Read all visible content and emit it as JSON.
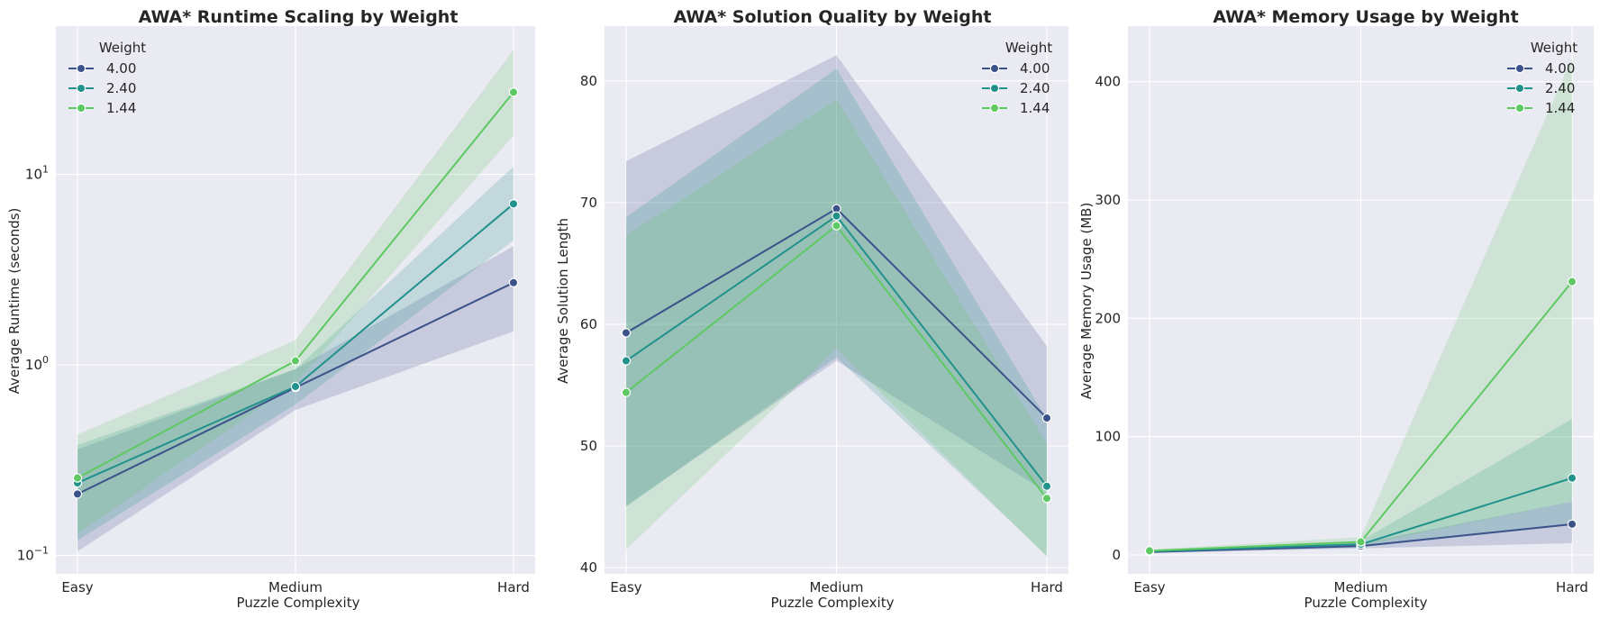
{
  "colors": {
    "background": "#ffffff",
    "axes_face": "#eaeaf2",
    "grid": "#ffffff",
    "text": "#262626"
  },
  "chart_data": [
    {
      "type": "line",
      "title": "AWA* Runtime Scaling by Weight",
      "xlabel": "Puzzle Complexity",
      "ylabel": "Average Runtime (seconds)",
      "yscale": "log",
      "categories": [
        "Easy",
        "Medium",
        "Hard"
      ],
      "ylim": [
        0.08,
        60
      ],
      "yticks": [
        {
          "value": 0.1,
          "base": "10",
          "exp": "−1"
        },
        {
          "value": 1,
          "base": "10",
          "exp": "0"
        },
        {
          "value": 10,
          "base": "10",
          "exp": "1"
        }
      ],
      "grid": true,
      "legend": {
        "title": "Weight",
        "position": "top-left"
      },
      "series": [
        {
          "name": "4.00",
          "color": "#3b528b",
          "values": [
            0.21,
            0.76,
            2.7
          ],
          "ci_low": [
            0.105,
            0.58,
            1.5
          ],
          "ci_high": [
            0.36,
            0.95,
            4.2
          ]
        },
        {
          "name": "2.40",
          "color": "#21918c",
          "values": [
            0.24,
            0.77,
            7.0
          ],
          "ci_low": [
            0.12,
            0.62,
            4.5
          ],
          "ci_high": [
            0.38,
            0.95,
            11
          ]
        },
        {
          "name": "1.44",
          "color": "#5ec962",
          "values": [
            0.255,
            1.05,
            27
          ],
          "ci_low": [
            0.13,
            0.8,
            16
          ],
          "ci_high": [
            0.43,
            1.35,
            45
          ]
        }
      ]
    },
    {
      "type": "line",
      "title": "AWA* Solution Quality by Weight",
      "xlabel": "Puzzle Complexity",
      "ylabel": "Average Solution Length",
      "yscale": "linear",
      "categories": [
        "Easy",
        "Medium",
        "Hard"
      ],
      "ylim": [
        39.5,
        84.5
      ],
      "yticks": [
        40,
        50,
        60,
        70,
        80
      ],
      "grid": true,
      "legend": {
        "title": "Weight",
        "position": "top-right"
      },
      "series": [
        {
          "name": "4.00",
          "color": "#3b528b",
          "values": [
            59.3,
            69.5,
            52.3
          ],
          "ci_low": [
            45.1,
            57.0,
            46.2
          ],
          "ci_high": [
            73.4,
            82.1,
            58.2
          ]
        },
        {
          "name": "2.40",
          "color": "#21918c",
          "values": [
            57.0,
            68.9,
            46.7
          ],
          "ci_low": [
            45.0,
            57.3,
            41.0
          ],
          "ci_high": [
            68.8,
            81.0,
            52.2
          ]
        },
        {
          "name": "1.44",
          "color": "#5ec962",
          "values": [
            54.4,
            68.1,
            45.7
          ],
          "ci_low": [
            41.5,
            58.0,
            40.9
          ],
          "ci_high": [
            67.3,
            78.5,
            50.2
          ]
        }
      ]
    },
    {
      "type": "line",
      "title": "AWA* Memory Usage by Weight",
      "xlabel": "Puzzle Complexity",
      "ylabel": "Average Memory Usage (MB)",
      "yscale": "linear",
      "categories": [
        "Easy",
        "Medium",
        "Hard"
      ],
      "ylim": [
        -16,
        447
      ],
      "yticks": [
        0,
        100,
        200,
        300,
        400
      ],
      "grid": true,
      "legend": {
        "title": "Weight",
        "position": "top-right"
      },
      "series": [
        {
          "name": "4.00",
          "color": "#3b528b",
          "values": [
            2.5,
            7.5,
            26
          ],
          "ci_low": [
            1.5,
            5.5,
            10
          ],
          "ci_high": [
            3.5,
            10,
            45
          ]
        },
        {
          "name": "2.40",
          "color": "#21918c",
          "values": [
            3.0,
            9.0,
            65
          ],
          "ci_low": [
            2.0,
            6.5,
            25
          ],
          "ci_high": [
            4.0,
            12,
            115
          ]
        },
        {
          "name": "1.44",
          "color": "#5ec962",
          "values": [
            3.5,
            11,
            231
          ],
          "ci_low": [
            2.5,
            8,
            45
          ],
          "ci_high": [
            4.5,
            15,
            420
          ]
        }
      ]
    }
  ]
}
